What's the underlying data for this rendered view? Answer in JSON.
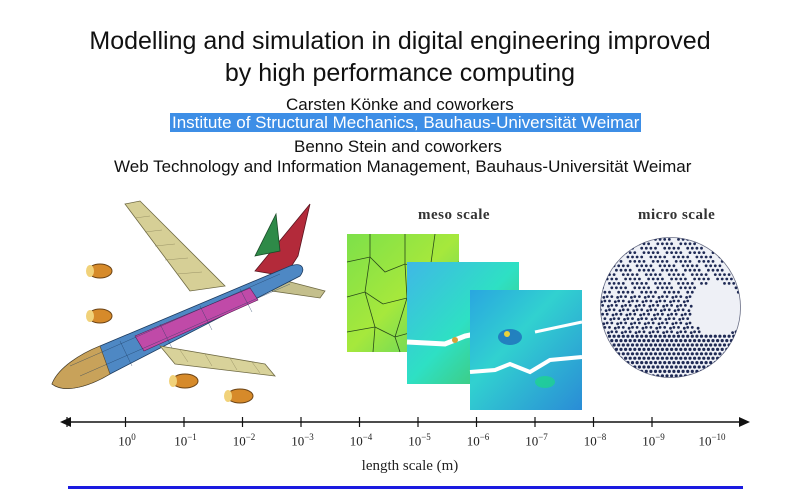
{
  "slide": {
    "title_line1": "Modelling and simulation in digital engineering improved",
    "title_line2": "by high performance computing",
    "author1": "Carsten Könke and coworkers",
    "affiliation1": "Institute of Structural Mechanics, Bauhaus-Universität Weimar",
    "author2": "Benno Stein and coworkers",
    "affiliation2": "Web Technology and Information Management, Bauhaus-Universität Weimar"
  },
  "figure": {
    "meso_label": "meso scale",
    "micro_label": "micro scale",
    "axis_title": "length scale (m)",
    "ticks": [
      {
        "base": "10",
        "exp": "0"
      },
      {
        "base": "10",
        "exp": "−1"
      },
      {
        "base": "10",
        "exp": "−2"
      },
      {
        "base": "10",
        "exp": "−3"
      },
      {
        "base": "10",
        "exp": "−4"
      },
      {
        "base": "10",
        "exp": "−5"
      },
      {
        "base": "10",
        "exp": "−6"
      },
      {
        "base": "10",
        "exp": "−7"
      },
      {
        "base": "10",
        "exp": "−8"
      },
      {
        "base": "10",
        "exp": "−9"
      },
      {
        "base": "10",
        "exp": "−10"
      }
    ]
  },
  "colors": {
    "selection": "#3d8ee6",
    "rule": "#1a1ae0",
    "fuselage": "#c04aa8",
    "wing": "#d8d29a",
    "tail": "#2e8a48"
  }
}
